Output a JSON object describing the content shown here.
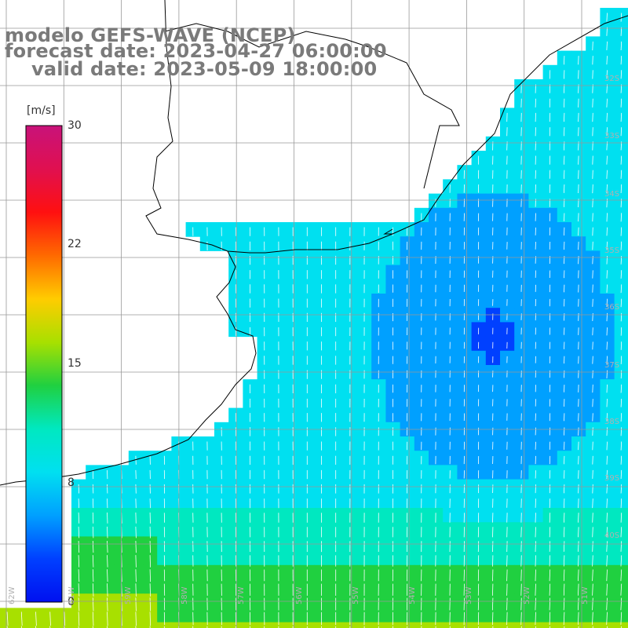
{
  "title": {
    "line1": "modelo GEFS-WAVE (NCEP)",
    "line2": "forecast date: 2023-04-27 06:00:00",
    "line3": "valid date: 2023-05-09 18:00:00"
  },
  "colorbar": {
    "unit": "[m/s]",
    "ticks": [
      "30",
      "22",
      "15",
      "8",
      "0"
    ],
    "gradient_colors": [
      "#c8127a",
      "#e01050",
      "#ff1010",
      "#ff6a00",
      "#ffcc00",
      "#a8e000",
      "#20d040",
      "#00e8c0",
      "#00e0f0",
      "#00a0ff",
      "#0040ff",
      "#0010f0"
    ]
  },
  "lat_labels": [
    "32S",
    "33S",
    "34S",
    "35S",
    "36S",
    "37S",
    "38S",
    "39S",
    "40S"
  ],
  "lon_labels": [
    "62W",
    "61W",
    "59W",
    "58W",
    "57W",
    "56W",
    "55W",
    "54W",
    "53W",
    "52W",
    "51W"
  ],
  "field": {
    "variable": "wind speed",
    "units": "m/s",
    "range": [
      0,
      30
    ],
    "colors": {
      "land": "#ffffff",
      "coast": "#000000",
      "grid": "#9a9a9a",
      "arrow": "#ffffff"
    }
  }
}
